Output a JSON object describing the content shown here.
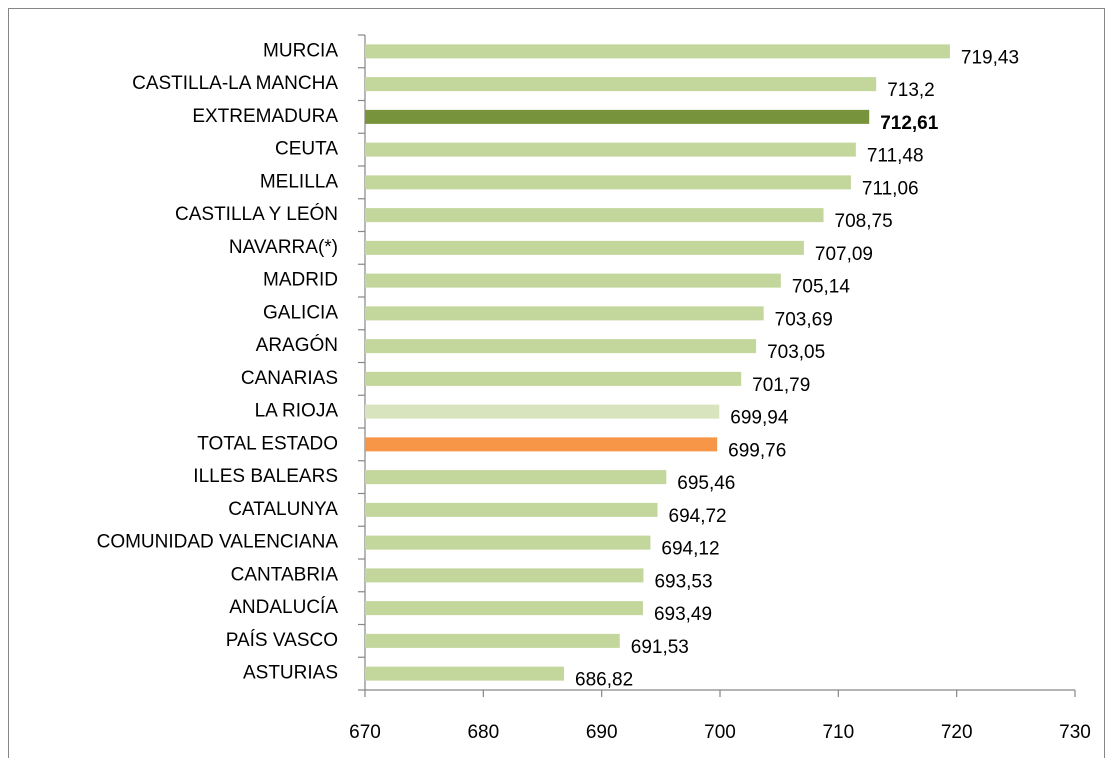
{
  "chart_data": {
    "type": "bar",
    "orientation": "horizontal",
    "categories": [
      "MURCIA",
      "CASTILLA-LA  MANCHA",
      "EXTREMADURA",
      "CEUTA",
      "MELILLA",
      "CASTILLA Y LEÓN",
      "NAVARRA(*)",
      "MADRID",
      "GALICIA",
      "ARAGÓN",
      "CANARIAS",
      "LA RIOJA",
      "TOTAL ESTADO",
      "ILLES BALEARS",
      "CATALUNYA",
      "COMUNIDAD  VALENCIANA",
      "CANTABRIA",
      "ANDALUCÍA",
      "PAÍS VASCO",
      "ASTURIAS"
    ],
    "values": [
      719.43,
      713.2,
      712.61,
      711.48,
      711.06,
      708.75,
      707.09,
      705.14,
      703.69,
      703.05,
      701.79,
      699.94,
      699.76,
      695.46,
      694.72,
      694.12,
      693.53,
      693.49,
      691.53,
      686.82
    ],
    "value_labels": [
      "719,43",
      "713,2",
      "712,61",
      "711,48",
      "711,06",
      "708,75",
      "707,09",
      "705,14",
      "703,69",
      "703,05",
      "701,79",
      "699,94",
      "699,76",
      "695,46",
      "694,72",
      "694,12",
      "693,53",
      "693,49",
      "691,53",
      "686,82"
    ],
    "colors": [
      "#c3d69b",
      "#c3d69b",
      "#77933c",
      "#c3d69b",
      "#c3d69b",
      "#c3d69b",
      "#c3d69b",
      "#c3d69b",
      "#c3d69b",
      "#c3d69b",
      "#c3d69b",
      "#d7e4bd",
      "#f79646",
      "#c3d69b",
      "#c3d69b",
      "#c3d69b",
      "#c3d69b",
      "#c3d69b",
      "#c3d69b",
      "#c3d69b"
    ],
    "xlim": [
      670,
      730
    ],
    "xticks": [
      670,
      680,
      690,
      700,
      710,
      720,
      730
    ]
  }
}
